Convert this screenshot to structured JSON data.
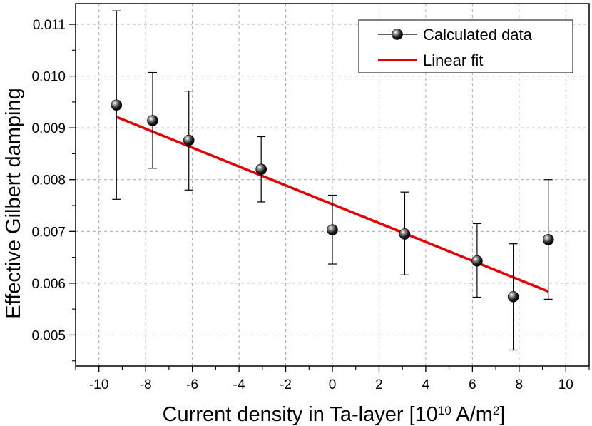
{
  "chart_data": {
    "type": "scatter",
    "xlabel": "Current density in Ta-layer [10",
    "xlabel_exp": "10",
    "xlabel_unit": " A/m",
    "xlabel_unit_exp": "2",
    "xlabel_close": "]",
    "ylabel": "Effective Gilbert damping",
    "xlim": [
      -11,
      11
    ],
    "ylim": [
      0.0044,
      0.0114
    ],
    "xticks": [
      -10,
      -8,
      -6,
      -4,
      -2,
      0,
      2,
      4,
      6,
      8,
      10
    ],
    "xtick_labels": [
      "-10",
      "-8",
      "-6",
      "-4",
      "-2",
      "0",
      "2",
      "4",
      "6",
      "8",
      "10"
    ],
    "yticks": [
      0.005,
      0.006,
      0.007,
      0.008,
      0.009,
      0.01,
      0.011
    ],
    "ytick_labels": [
      "0.005",
      "0.006",
      "0.007",
      "0.008",
      "0.009",
      "0.010",
      "0.011"
    ],
    "grid": true,
    "legend_position": "top-right",
    "series": [
      {
        "name": "Calculated data",
        "kind": "points-with-errorbars",
        "color": "#000000",
        "x": [
          -9.25,
          -7.7,
          -6.15,
          -3.05,
          0.0,
          3.1,
          6.2,
          7.75,
          9.25
        ],
        "y": [
          0.00944,
          0.00914,
          0.00876,
          0.0082,
          0.00703,
          0.00695,
          0.00643,
          0.00574,
          0.00684
        ],
        "err_low": [
          0.00762,
          0.00822,
          0.0078,
          0.00757,
          0.00637,
          0.00616,
          0.00573,
          0.00471,
          0.00569
        ],
        "err_high": [
          0.01126,
          0.01007,
          0.00971,
          0.00883,
          0.0077,
          0.00776,
          0.00715,
          0.00676,
          0.008
        ]
      },
      {
        "name": "Linear fit",
        "kind": "line",
        "color": "#e00000",
        "x": [
          -9.25,
          9.25
        ],
        "y": [
          0.00921,
          0.00584
        ]
      }
    ]
  }
}
